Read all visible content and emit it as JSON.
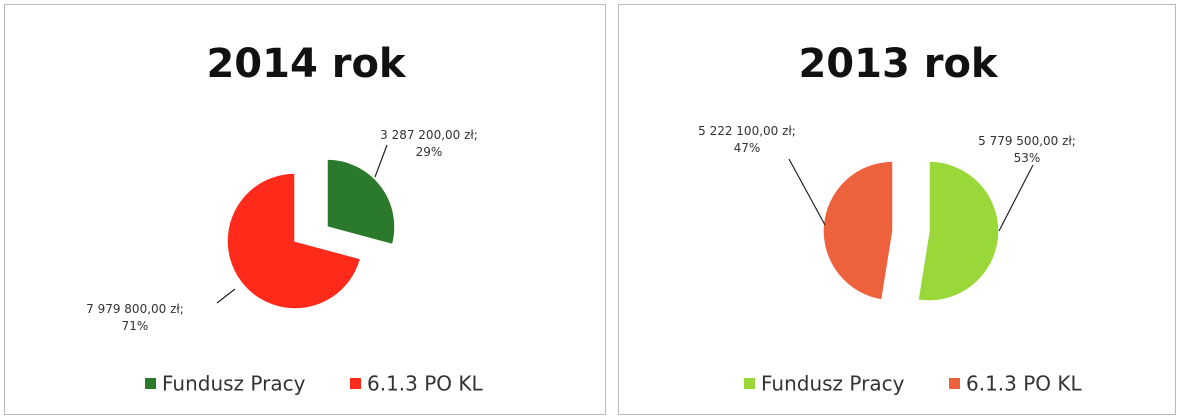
{
  "chart_data": [
    {
      "type": "pie",
      "title": "2014 rok",
      "categories": [
        "Fundusz Pracy",
        "6.1.3 PO KL"
      ],
      "values": [
        3287200,
        7979800
      ],
      "value_labels": [
        "3 287 200,00 zł; 29%",
        "7 979 800,00 zł; 71%"
      ],
      "colors": [
        "#2b7a2b",
        "#ff2a1a"
      ]
    },
    {
      "type": "pie",
      "title": "2013 rok",
      "categories": [
        "Fundusz Pracy",
        "6.1.3 PO KL"
      ],
      "values": [
        5779500,
        5222100
      ],
      "value_labels": [
        "5 779 500,00 zł; 53%",
        "5 222 100,00 zł; 47%"
      ],
      "colors": [
        "#9ad83a",
        "#ee613d"
      ]
    }
  ]
}
